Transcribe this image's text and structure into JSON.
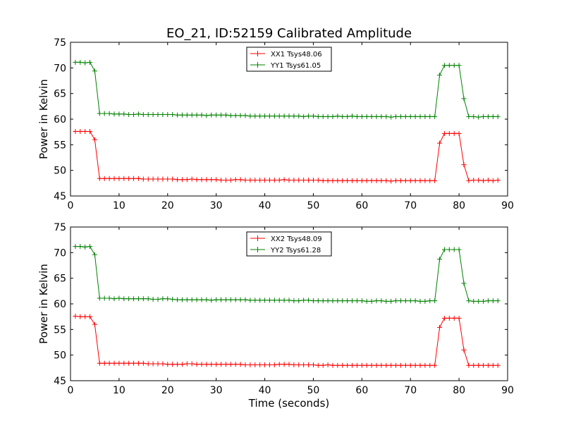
{
  "chart_data": {
    "type": "line",
    "title": "EO_21, ID:52159 Calibrated Amplitude",
    "xlabel": "Time (seconds)",
    "x_ticks": [
      "0",
      "10",
      "20",
      "30",
      "40",
      "50",
      "60",
      "70",
      "80",
      "90"
    ],
    "y_ticks": [
      "45",
      "50",
      "55",
      "60",
      "65",
      "70",
      "75"
    ],
    "legend_position": "top-center",
    "grid": false,
    "panels": [
      {
        "ylabel": "Power in Kelvin",
        "xlabel": "",
        "xlim": [
          0,
          90
        ],
        "ylim": [
          45,
          75
        ],
        "series": [
          {
            "name": "XX1 Tsys48.06",
            "color": "#ff0000",
            "x": [
              1,
              2,
              3,
              4,
              5,
              6,
              7,
              8,
              9,
              10,
              11,
              12,
              13,
              14,
              15,
              16,
              17,
              18,
              19,
              20,
              21,
              22,
              23,
              24,
              25,
              26,
              27,
              28,
              29,
              30,
              31,
              32,
              33,
              34,
              35,
              36,
              37,
              38,
              39,
              40,
              41,
              42,
              43,
              44,
              45,
              46,
              47,
              48,
              49,
              50,
              51,
              52,
              53,
              54,
              55,
              56,
              57,
              58,
              59,
              60,
              61,
              62,
              63,
              64,
              65,
              66,
              67,
              68,
              69,
              70,
              71,
              72,
              73,
              74,
              75,
              76,
              77,
              78,
              79,
              80,
              81,
              82,
              83,
              84,
              85,
              86,
              87,
              88
            ],
            "y": [
              57.6,
              57.6,
              57.6,
              57.6,
              56.0,
              48.4,
              48.4,
              48.4,
              48.4,
              48.4,
              48.4,
              48.4,
              48.4,
              48.4,
              48.3,
              48.3,
              48.3,
              48.3,
              48.3,
              48.3,
              48.3,
              48.2,
              48.2,
              48.2,
              48.3,
              48.2,
              48.2,
              48.2,
              48.2,
              48.2,
              48.1,
              48.1,
              48.1,
              48.2,
              48.2,
              48.1,
              48.1,
              48.1,
              48.1,
              48.1,
              48.1,
              48.1,
              48.1,
              48.2,
              48.1,
              48.1,
              48.1,
              48.1,
              48.1,
              48.1,
              48.1,
              48.0,
              48.0,
              48.0,
              48.0,
              48.0,
              48.0,
              48.0,
              48.0,
              48.0,
              48.0,
              48.0,
              48.0,
              48.0,
              48.0,
              47.9,
              48.0,
              48.0,
              48.0,
              48.0,
              48.0,
              48.0,
              48.0,
              48.0,
              48.0,
              55.3,
              57.2,
              57.2,
              57.2,
              57.2,
              51.1,
              48.0,
              48.1,
              48.1,
              48.0,
              48.1,
              48.0,
              48.1
            ]
          },
          {
            "name": "YY1 Tsys61.05",
            "color": "#008000",
            "x": [
              1,
              2,
              3,
              4,
              5,
              6,
              7,
              8,
              9,
              10,
              11,
              12,
              13,
              14,
              15,
              16,
              17,
              18,
              19,
              20,
              21,
              22,
              23,
              24,
              25,
              26,
              27,
              28,
              29,
              30,
              31,
              32,
              33,
              34,
              35,
              36,
              37,
              38,
              39,
              40,
              41,
              42,
              43,
              44,
              45,
              46,
              47,
              48,
              49,
              50,
              51,
              52,
              53,
              54,
              55,
              56,
              57,
              58,
              59,
              60,
              61,
              62,
              63,
              64,
              65,
              66,
              67,
              68,
              69,
              70,
              71,
              72,
              73,
              74,
              75,
              76,
              77,
              78,
              79,
              80,
              81,
              82,
              83,
              84,
              85,
              86,
              87,
              88
            ],
            "y": [
              71.1,
              71.1,
              71.0,
              71.1,
              69.4,
              61.1,
              61.1,
              61.1,
              61.0,
              61.0,
              61.0,
              60.9,
              60.9,
              61.0,
              60.9,
              60.9,
              60.9,
              60.9,
              60.9,
              60.9,
              60.9,
              60.8,
              60.8,
              60.8,
              60.8,
              60.8,
              60.8,
              60.7,
              60.8,
              60.8,
              60.8,
              60.8,
              60.7,
              60.7,
              60.7,
              60.7,
              60.6,
              60.6,
              60.6,
              60.6,
              60.6,
              60.6,
              60.6,
              60.6,
              60.6,
              60.6,
              60.6,
              60.5,
              60.6,
              60.6,
              60.5,
              60.5,
              60.5,
              60.5,
              60.6,
              60.5,
              60.5,
              60.6,
              60.5,
              60.5,
              60.5,
              60.5,
              60.5,
              60.5,
              60.5,
              60.4,
              60.5,
              60.5,
              60.5,
              60.5,
              60.5,
              60.5,
              60.5,
              60.5,
              60.5,
              68.6,
              70.5,
              70.5,
              70.5,
              70.5,
              64.0,
              60.5,
              60.5,
              60.4,
              60.5,
              60.5,
              60.5,
              60.5
            ]
          }
        ]
      },
      {
        "ylabel": "Power in Kelvin",
        "xlabel": "Time (seconds)",
        "xlim": [
          0,
          90
        ],
        "ylim": [
          45,
          75
        ],
        "series": [
          {
            "name": "XX2 Tsys48.09",
            "color": "#ff0000",
            "x": [
              1,
              2,
              3,
              4,
              5,
              6,
              7,
              8,
              9,
              10,
              11,
              12,
              13,
              14,
              15,
              16,
              17,
              18,
              19,
              20,
              21,
              22,
              23,
              24,
              25,
              26,
              27,
              28,
              29,
              30,
              31,
              32,
              33,
              34,
              35,
              36,
              37,
              38,
              39,
              40,
              41,
              42,
              43,
              44,
              45,
              46,
              47,
              48,
              49,
              50,
              51,
              52,
              53,
              54,
              55,
              56,
              57,
              58,
              59,
              60,
              61,
              62,
              63,
              64,
              65,
              66,
              67,
              68,
              69,
              70,
              71,
              72,
              73,
              74,
              75,
              76,
              77,
              78,
              79,
              80,
              81,
              82,
              83,
              84,
              85,
              86,
              87,
              88
            ],
            "y": [
              57.6,
              57.5,
              57.5,
              57.5,
              56.0,
              48.4,
              48.4,
              48.4,
              48.4,
              48.4,
              48.4,
              48.4,
              48.4,
              48.4,
              48.4,
              48.3,
              48.3,
              48.3,
              48.3,
              48.2,
              48.2,
              48.2,
              48.2,
              48.3,
              48.3,
              48.2,
              48.2,
              48.2,
              48.2,
              48.2,
              48.2,
              48.2,
              48.2,
              48.2,
              48.2,
              48.1,
              48.1,
              48.1,
              48.1,
              48.1,
              48.1,
              48.1,
              48.2,
              48.2,
              48.2,
              48.1,
              48.1,
              48.1,
              48.1,
              48.1,
              48.0,
              48.0,
              48.1,
              48.0,
              48.0,
              48.0,
              48.0,
              48.0,
              48.0,
              48.0,
              48.0,
              48.0,
              48.0,
              48.0,
              48.0,
              48.0,
              48.0,
              48.0,
              48.0,
              48.0,
              48.0,
              48.0,
              48.0,
              48.0,
              48.0,
              55.4,
              57.2,
              57.2,
              57.2,
              57.2,
              51.0,
              48.0,
              48.0,
              48.0,
              48.0,
              48.0,
              48.0,
              48.0
            ]
          },
          {
            "name": "YY2 Tsys61.28",
            "color": "#008000",
            "x": [
              1,
              2,
              3,
              4,
              5,
              6,
              7,
              8,
              9,
              10,
              11,
              12,
              13,
              14,
              15,
              16,
              17,
              18,
              19,
              20,
              21,
              22,
              23,
              24,
              25,
              26,
              27,
              28,
              29,
              30,
              31,
              32,
              33,
              34,
              35,
              36,
              37,
              38,
              39,
              40,
              41,
              42,
              43,
              44,
              45,
              46,
              47,
              48,
              49,
              50,
              51,
              52,
              53,
              54,
              55,
              56,
              57,
              58,
              59,
              60,
              61,
              62,
              63,
              64,
              65,
              66,
              67,
              68,
              69,
              70,
              71,
              72,
              73,
              74,
              75,
              76,
              77,
              78,
              79,
              80,
              81,
              82,
              83,
              84,
              85,
              86,
              87,
              88
            ],
            "y": [
              71.2,
              71.2,
              71.1,
              71.2,
              69.6,
              61.1,
              61.1,
              61.1,
              61.0,
              61.1,
              61.0,
              61.0,
              61.0,
              61.0,
              61.0,
              61.0,
              60.9,
              60.9,
              61.0,
              61.0,
              60.9,
              60.8,
              60.8,
              60.8,
              60.8,
              60.8,
              60.8,
              60.8,
              60.7,
              60.8,
              60.8,
              60.8,
              60.8,
              60.8,
              60.8,
              60.8,
              60.7,
              60.7,
              60.7,
              60.7,
              60.7,
              60.7,
              60.7,
              60.7,
              60.7,
              60.6,
              60.6,
              60.7,
              60.7,
              60.6,
              60.6,
              60.6,
              60.6,
              60.6,
              60.6,
              60.6,
              60.6,
              60.6,
              60.6,
              60.6,
              60.5,
              60.5,
              60.6,
              60.6,
              60.5,
              60.5,
              60.6,
              60.6,
              60.6,
              60.6,
              60.6,
              60.5,
              60.5,
              60.6,
              60.6,
              68.7,
              70.6,
              70.6,
              70.6,
              70.6,
              64.0,
              60.6,
              60.5,
              60.5,
              60.5,
              60.6,
              60.6,
              60.6
            ]
          }
        ]
      }
    ]
  }
}
